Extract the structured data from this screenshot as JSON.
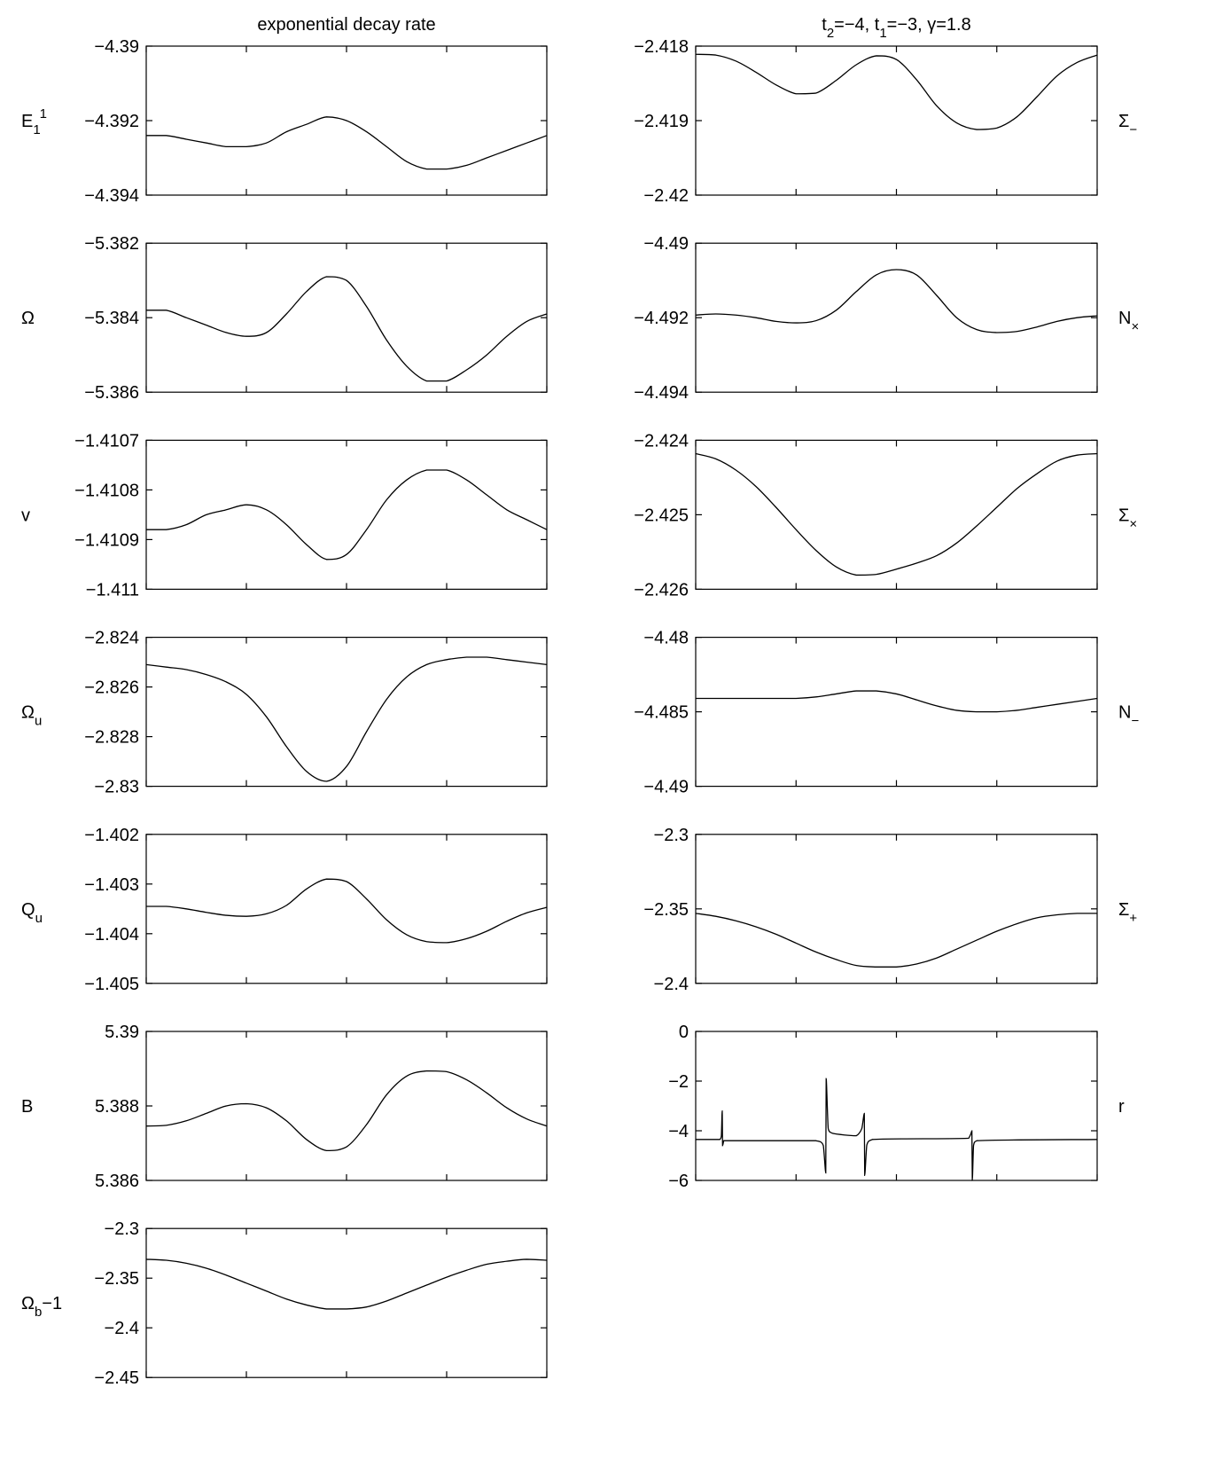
{
  "chart_data": [
    {
      "type": "line",
      "title": [
        {
          "text": "exponential decay rate"
        }
      ],
      "ylabel": [
        {
          "text": "E"
        },
        {
          "sub": "1"
        },
        {
          "sup": "1"
        }
      ],
      "color": "#000000",
      "x": [
        0,
        0.05,
        0.1,
        0.15,
        0.2,
        0.25,
        0.3,
        0.35,
        0.4,
        0.45,
        0.5,
        0.55,
        0.6,
        0.65,
        0.7,
        0.75,
        0.8,
        0.85,
        0.9,
        0.95,
        1
      ],
      "values": [
        -4.3924,
        -4.3924,
        -4.3925,
        -4.3926,
        -4.3927,
        -4.3927,
        -4.3926,
        -4.3923,
        -4.3921,
        -4.3919,
        -4.392,
        -4.3923,
        -4.3927,
        -4.3931,
        -4.3933,
        -4.3933,
        -4.3932,
        -4.393,
        -4.3928,
        -4.3926,
        -4.3924
      ],
      "xlim": [
        0,
        1
      ],
      "xticks": [
        0,
        0.25,
        0.5,
        0.75,
        1
      ],
      "ylim": [
        -4.394,
        -4.39
      ],
      "yticks": [
        {
          "value": -4.39,
          "label": "−4.39"
        },
        {
          "value": -4.392,
          "label": "−4.392"
        },
        {
          "value": -4.394,
          "label": "−4.394"
        }
      ]
    },
    {
      "type": "line",
      "ylabel": [
        {
          "text": "Ω"
        }
      ],
      "color": "#000000",
      "x": [
        0,
        0.05,
        0.1,
        0.15,
        0.2,
        0.25,
        0.3,
        0.35,
        0.4,
        0.45,
        0.5,
        0.55,
        0.6,
        0.65,
        0.7,
        0.75,
        0.8,
        0.85,
        0.9,
        0.95,
        1
      ],
      "values": [
        -5.3838,
        -5.3838,
        -5.384,
        -5.3842,
        -5.3844,
        -5.3845,
        -5.3844,
        -5.3839,
        -5.3833,
        -5.3829,
        -5.383,
        -5.3837,
        -5.3846,
        -5.3853,
        -5.3857,
        -5.3857,
        -5.3854,
        -5.385,
        -5.3845,
        -5.3841,
        -5.3839
      ],
      "xlim": [
        0,
        1
      ],
      "xticks": [
        0,
        0.25,
        0.5,
        0.75,
        1
      ],
      "ylim": [
        -5.386,
        -5.382
      ],
      "yticks": [
        {
          "value": -5.382,
          "label": "−5.382"
        },
        {
          "value": -5.384,
          "label": "−5.384"
        },
        {
          "value": -5.386,
          "label": "−5.386"
        }
      ]
    },
    {
      "type": "line",
      "ylabel": [
        {
          "text": "v"
        }
      ],
      "color": "#000000",
      "x": [
        0,
        0.05,
        0.1,
        0.15,
        0.2,
        0.25,
        0.3,
        0.35,
        0.4,
        0.45,
        0.5,
        0.55,
        0.6,
        0.65,
        0.7,
        0.75,
        0.8,
        0.85,
        0.9,
        0.95,
        1
      ],
      "values": [
        -1.41088,
        -1.41088,
        -1.41087,
        -1.41085,
        -1.41084,
        -1.41083,
        -1.41084,
        -1.41087,
        -1.41091,
        -1.41094,
        -1.41093,
        -1.41088,
        -1.41082,
        -1.41078,
        -1.41076,
        -1.41076,
        -1.41078,
        -1.41081,
        -1.41084,
        -1.41086,
        -1.41088
      ],
      "xlim": [
        0,
        1
      ],
      "xticks": [
        0,
        0.25,
        0.5,
        0.75,
        1
      ],
      "ylim": [
        -1.411,
        -1.4107
      ],
      "yticks": [
        {
          "value": -1.4107,
          "label": "−1.4107"
        },
        {
          "value": -1.4108,
          "label": "−1.4108"
        },
        {
          "value": -1.4109,
          "label": "−1.4109"
        },
        {
          "value": -1.411,
          "label": "−1.411"
        }
      ]
    },
    {
      "type": "line",
      "ylabel": [
        {
          "text": "Ω"
        },
        {
          "sub": "u"
        }
      ],
      "color": "#000000",
      "x": [
        0,
        0.05,
        0.1,
        0.15,
        0.2,
        0.25,
        0.3,
        0.35,
        0.4,
        0.45,
        0.5,
        0.55,
        0.6,
        0.65,
        0.7,
        0.75,
        0.8,
        0.85,
        0.9,
        0.95,
        1
      ],
      "values": [
        -2.8251,
        -2.8252,
        -2.8253,
        -2.8255,
        -2.8258,
        -2.8263,
        -2.8272,
        -2.8284,
        -2.8294,
        -2.8298,
        -2.8292,
        -2.8278,
        -2.8265,
        -2.8256,
        -2.8251,
        -2.8249,
        -2.8248,
        -2.8248,
        -2.8249,
        -2.825,
        -2.8251
      ],
      "xlim": [
        0,
        1
      ],
      "xticks": [
        0,
        0.25,
        0.5,
        0.75,
        1
      ],
      "ylim": [
        -2.83,
        -2.824
      ],
      "yticks": [
        {
          "value": -2.824,
          "label": "−2.824"
        },
        {
          "value": -2.826,
          "label": "−2.826"
        },
        {
          "value": -2.828,
          "label": "−2.828"
        },
        {
          "value": -2.83,
          "label": "−2.83"
        }
      ]
    },
    {
      "type": "line",
      "ylabel": [
        {
          "text": "Q"
        },
        {
          "sub": "u"
        }
      ],
      "color": "#000000",
      "x": [
        0,
        0.05,
        0.1,
        0.15,
        0.2,
        0.25,
        0.3,
        0.35,
        0.4,
        0.45,
        0.5,
        0.55,
        0.6,
        0.65,
        0.7,
        0.75,
        0.8,
        0.85,
        0.9,
        0.95,
        1
      ],
      "values": [
        -1.40345,
        -1.40345,
        -1.4035,
        -1.40357,
        -1.40363,
        -1.40365,
        -1.4036,
        -1.40343,
        -1.4031,
        -1.4029,
        -1.40295,
        -1.4033,
        -1.40372,
        -1.40402,
        -1.40416,
        -1.40418,
        -1.4041,
        -1.40395,
        -1.40375,
        -1.40358,
        -1.40347
      ],
      "xlim": [
        0,
        1
      ],
      "xticks": [
        0,
        0.25,
        0.5,
        0.75,
        1
      ],
      "ylim": [
        -1.405,
        -1.402
      ],
      "yticks": [
        {
          "value": -1.402,
          "label": "−1.402"
        },
        {
          "value": -1.403,
          "label": "−1.403"
        },
        {
          "value": -1.404,
          "label": "−1.404"
        },
        {
          "value": -1.405,
          "label": "−1.405"
        }
      ]
    },
    {
      "type": "line",
      "ylabel": [
        {
          "text": "B"
        }
      ],
      "color": "#000000",
      "x": [
        0,
        0.05,
        0.1,
        0.15,
        0.2,
        0.25,
        0.3,
        0.35,
        0.4,
        0.45,
        0.5,
        0.55,
        0.6,
        0.65,
        0.7,
        0.75,
        0.8,
        0.85,
        0.9,
        0.95,
        1
      ],
      "values": [
        5.38746,
        5.38748,
        5.3876,
        5.3878,
        5.388,
        5.38806,
        5.38795,
        5.3876,
        5.3871,
        5.3868,
        5.3869,
        5.3875,
        5.3883,
        5.3888,
        5.38894,
        5.38892,
        5.3887,
        5.38835,
        5.38795,
        5.38765,
        5.38746
      ],
      "xlim": [
        0,
        1
      ],
      "xticks": [
        0,
        0.25,
        0.5,
        0.75,
        1
      ],
      "ylim": [
        5.386,
        5.39
      ],
      "yticks": [
        5.39,
        5.388,
        5.386
      ]
    },
    {
      "type": "line",
      "ylabel": [
        {
          "text": "Ω"
        },
        {
          "sub": "b"
        },
        {
          "text": "−1"
        }
      ],
      "color": "#000000",
      "x": [
        0,
        0.05,
        0.1,
        0.15,
        0.2,
        0.25,
        0.3,
        0.35,
        0.4,
        0.45,
        0.5,
        0.55,
        0.6,
        0.65,
        0.7,
        0.75,
        0.8,
        0.85,
        0.9,
        0.95,
        1
      ],
      "values": [
        -2.331,
        -2.332,
        -2.335,
        -2.34,
        -2.347,
        -2.355,
        -2.363,
        -2.371,
        -2.377,
        -2.381,
        -2.381,
        -2.379,
        -2.373,
        -2.365,
        -2.357,
        -2.349,
        -2.342,
        -2.336,
        -2.333,
        -2.331,
        -2.332
      ],
      "xlim": [
        0,
        1
      ],
      "xticks": [
        0,
        0.25,
        0.5,
        0.75,
        1
      ],
      "ylim": [
        -2.45,
        -2.3
      ],
      "yticks": [
        {
          "value": -2.3,
          "label": "−2.3"
        },
        {
          "value": -2.35,
          "label": "−2.35"
        },
        {
          "value": -2.4,
          "label": "−2.4"
        },
        {
          "value": -2.45,
          "label": "−2.45"
        }
      ]
    },
    {
      "type": "line",
      "title": [
        {
          "text": "t"
        },
        {
          "sub": "2"
        },
        {
          "text": "=−4, t"
        },
        {
          "sub": "1"
        },
        {
          "text": "=−3, γ=1.8"
        }
      ],
      "ylabel": [
        {
          "text": "Σ"
        },
        {
          "sub": "−"
        }
      ],
      "color": "#000000",
      "x": [
        0,
        0.05,
        0.1,
        0.15,
        0.2,
        0.25,
        0.3,
        0.35,
        0.4,
        0.45,
        0.5,
        0.55,
        0.6,
        0.65,
        0.7,
        0.75,
        0.8,
        0.85,
        0.9,
        0.95,
        1
      ],
      "values": [
        -2.41811,
        -2.41812,
        -2.4182,
        -2.41835,
        -2.41852,
        -2.41864,
        -2.41863,
        -2.41846,
        -2.41825,
        -2.41813,
        -2.41818,
        -2.41845,
        -2.4188,
        -2.41903,
        -2.41912,
        -2.4191,
        -2.41895,
        -2.41868,
        -2.4184,
        -2.41822,
        -2.41812
      ],
      "xlim": [
        0,
        1
      ],
      "xticks": [
        0,
        0.25,
        0.5,
        0.75,
        1
      ],
      "ylim": [
        -2.42,
        -2.418
      ],
      "yticks": [
        {
          "value": -2.418,
          "label": "−2.418"
        },
        {
          "value": -2.419,
          "label": "−2.419"
        },
        {
          "value": -2.42,
          "label": "−2.42"
        }
      ]
    },
    {
      "type": "line",
      "ylabel": [
        {
          "text": "N"
        },
        {
          "sub": "×"
        }
      ],
      "color": "#000000",
      "x": [
        0,
        0.05,
        0.1,
        0.15,
        0.2,
        0.25,
        0.3,
        0.35,
        0.4,
        0.45,
        0.5,
        0.55,
        0.6,
        0.65,
        0.7,
        0.75,
        0.8,
        0.85,
        0.9,
        0.95,
        1
      ],
      "values": [
        -4.49193,
        -4.4919,
        -4.49193,
        -4.492,
        -4.4921,
        -4.49214,
        -4.49208,
        -4.4918,
        -4.4913,
        -4.49085,
        -4.49071,
        -4.49085,
        -4.4914,
        -4.492,
        -4.49232,
        -4.4924,
        -4.49237,
        -4.49225,
        -4.4921,
        -4.492,
        -4.49195
      ],
      "xlim": [
        0,
        1
      ],
      "xticks": [
        0,
        0.25,
        0.5,
        0.75,
        1
      ],
      "ylim": [
        -4.494,
        -4.49
      ],
      "yticks": [
        {
          "value": -4.49,
          "label": "−4.49"
        },
        {
          "value": -4.492,
          "label": "−4.492"
        },
        {
          "value": -4.494,
          "label": "−4.494"
        }
      ]
    },
    {
      "type": "line",
      "ylabel": [
        {
          "text": "Σ"
        },
        {
          "sub": "×"
        }
      ],
      "color": "#000000",
      "x": [
        0,
        0.05,
        0.1,
        0.15,
        0.2,
        0.25,
        0.3,
        0.35,
        0.4,
        0.45,
        0.5,
        0.55,
        0.6,
        0.65,
        0.7,
        0.75,
        0.8,
        0.85,
        0.9,
        0.95,
        1
      ],
      "values": [
        -2.42418,
        -2.42425,
        -2.4244,
        -2.42462,
        -2.4249,
        -2.4252,
        -2.42548,
        -2.4257,
        -2.42581,
        -2.4258,
        -2.42573,
        -2.42565,
        -2.42555,
        -2.42538,
        -2.42515,
        -2.4249,
        -2.42465,
        -2.42445,
        -2.42428,
        -2.4242,
        -2.42418
      ],
      "xlim": [
        0,
        1
      ],
      "xticks": [
        0,
        0.25,
        0.5,
        0.75,
        1
      ],
      "ylim": [
        -2.426,
        -2.424
      ],
      "yticks": [
        {
          "value": -2.424,
          "label": "−2.424"
        },
        {
          "value": -2.425,
          "label": "−2.425"
        },
        {
          "value": -2.426,
          "label": "−2.426"
        }
      ]
    },
    {
      "type": "line",
      "ylabel": [
        {
          "text": "N"
        },
        {
          "sub": "−"
        }
      ],
      "color": "#000000",
      "x": [
        0,
        0.05,
        0.1,
        0.15,
        0.2,
        0.25,
        0.3,
        0.35,
        0.4,
        0.45,
        0.5,
        0.55,
        0.6,
        0.65,
        0.7,
        0.75,
        0.8,
        0.85,
        0.9,
        0.95,
        1
      ],
      "values": [
        -4.4841,
        -4.4841,
        -4.4841,
        -4.4841,
        -4.4841,
        -4.4841,
        -4.484,
        -4.4838,
        -4.4836,
        -4.4836,
        -4.4838,
        -4.4842,
        -4.4846,
        -4.4849,
        -4.485,
        -4.485,
        -4.4849,
        -4.4847,
        -4.4845,
        -4.4843,
        -4.4841
      ],
      "xlim": [
        0,
        1
      ],
      "xticks": [
        0,
        0.25,
        0.5,
        0.75,
        1
      ],
      "ylim": [
        -4.49,
        -4.48
      ],
      "yticks": [
        {
          "value": -4.48,
          "label": "−4.48"
        },
        {
          "value": -4.485,
          "label": "−4.485"
        },
        {
          "value": -4.49,
          "label": "−4.49"
        }
      ]
    },
    {
      "type": "line",
      "ylabel": [
        {
          "text": "Σ"
        },
        {
          "sub": "+"
        }
      ],
      "color": "#000000",
      "x": [
        0,
        0.05,
        0.1,
        0.15,
        0.2,
        0.25,
        0.3,
        0.35,
        0.4,
        0.45,
        0.5,
        0.55,
        0.6,
        0.65,
        0.7,
        0.75,
        0.8,
        0.85,
        0.9,
        0.95,
        1
      ],
      "values": [
        -2.353,
        -2.355,
        -2.358,
        -2.362,
        -2.367,
        -2.373,
        -2.379,
        -2.384,
        -2.388,
        -2.389,
        -2.389,
        -2.387,
        -2.383,
        -2.377,
        -2.371,
        -2.365,
        -2.36,
        -2.356,
        -2.354,
        -2.353,
        -2.353
      ],
      "xlim": [
        0,
        1
      ],
      "xticks": [
        0,
        0.25,
        0.5,
        0.75,
        1
      ],
      "ylim": [
        -2.4,
        -2.3
      ],
      "yticks": [
        {
          "value": -2.3,
          "label": "−2.3"
        },
        {
          "value": -2.35,
          "label": "−2.35"
        },
        {
          "value": -2.4,
          "label": "−2.4"
        }
      ]
    },
    {
      "type": "line",
      "ylabel": [
        {
          "text": "r"
        }
      ],
      "color": "#000000",
      "x": [
        0,
        0.06,
        0.064,
        0.066,
        0.067,
        0.07,
        0.3,
        0.318,
        0.324,
        0.325,
        0.33,
        0.34,
        0.4,
        0.414,
        0.42,
        0.421,
        0.426,
        0.44,
        0.68,
        0.686,
        0.688,
        0.689,
        0.692,
        0.7,
        1
      ],
      "values": [
        -4.35,
        -4.35,
        -4.2,
        -3.2,
        -4.6,
        -4.4,
        -4.4,
        -4.6,
        -5.7,
        -1.9,
        -3.9,
        -4.1,
        -4.2,
        -3.9,
        -3.3,
        -5.8,
        -4.6,
        -4.35,
        -4.3,
        -4.1,
        -4.0,
        -6.0,
        -4.6,
        -4.4,
        -4.35
      ],
      "xlim": [
        0,
        1
      ],
      "xticks": [
        0,
        0.25,
        0.5,
        0.75,
        1
      ],
      "ylim": [
        -6,
        0
      ],
      "yticks": [
        0,
        {
          "value": -2,
          "label": "−2"
        },
        {
          "value": -4,
          "label": "−4"
        },
        {
          "value": -6,
          "label": "−6"
        }
      ]
    }
  ]
}
